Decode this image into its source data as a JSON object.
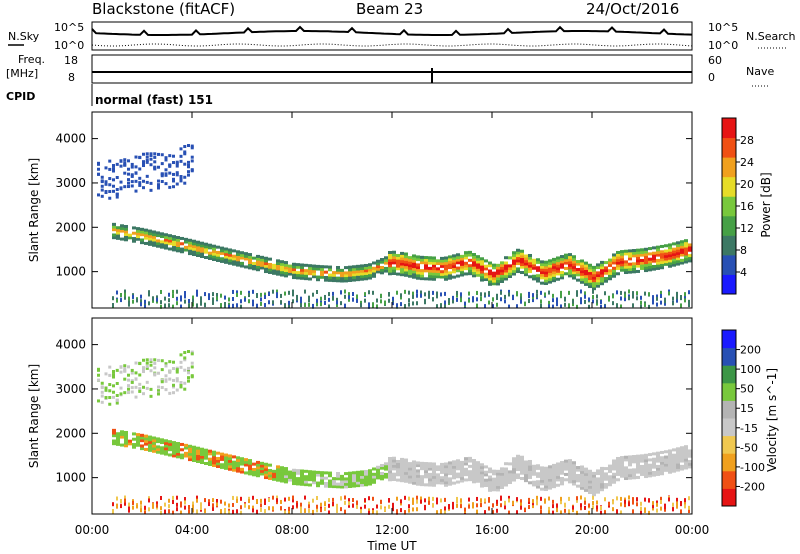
{
  "header": {
    "station": "Blackstone (fitACF)",
    "beam": "Beam 23",
    "date": "24/Oct/2016"
  },
  "top_panels": {
    "left_label_1": "N.Sky",
    "left_label_2a": "Freq.",
    "left_label_2b": "[MHz]",
    "left_label_3": "CPID",
    "right_label_1": "N.Search",
    "right_label_2": "Nave",
    "ticks_left_1": [
      "10^5",
      "10^0"
    ],
    "ticks_right_1": [
      "10^5",
      "10^0"
    ],
    "ticks_left_2": [
      "18",
      "8"
    ],
    "ticks_right_2": [
      "60",
      "0"
    ],
    "cpid_text": "normal (fast) 151"
  },
  "colors": {
    "power_scale": [
      "#1a1aff",
      "#2850b4",
      "#3c7864",
      "#46a046",
      "#78c83c",
      "#e6dc28",
      "#f0a01e",
      "#f05014",
      "#e61414"
    ],
    "velocity_scale": [
      "#e61414",
      "#f05014",
      "#f0a01e",
      "#f0c850",
      "#c8c8c8",
      "#b4b4b4",
      "#78c83c",
      "#3c9646",
      "#2850b4",
      "#1a1aff"
    ]
  },
  "chart_data": [
    {
      "type": "heatmap",
      "title": "",
      "xlabel": "Time UT",
      "ylabel": "Slant Range [km]",
      "x_range": [
        "00:00",
        "00:00"
      ],
      "x_ticks": [
        "00:00",
        "04:00",
        "08:00",
        "12:00",
        "16:00",
        "20:00",
        "00:00"
      ],
      "y_ticks": [
        1000,
        2000,
        3000,
        4000
      ],
      "ylim": [
        180,
        4600
      ],
      "colorbar": {
        "label": "Power [dB]",
        "ticks": [
          4,
          8,
          12,
          16,
          20,
          24,
          28
        ],
        "range": [
          0,
          30
        ]
      },
      "band_ridge": {
        "time_hours": [
          0.8,
          2,
          3,
          4,
          5,
          6,
          7,
          8,
          9,
          10,
          11,
          11.9,
          12.5,
          13,
          14,
          15,
          16,
          17,
          18,
          19,
          20,
          21,
          22,
          23,
          24
        ],
        "range_km": [
          1900,
          1780,
          1650,
          1520,
          1380,
          1250,
          1120,
          1000,
          950,
          920,
          980,
          1200,
          1150,
          1080,
          1050,
          1200,
          900,
          1250,
          950,
          1150,
          850,
          1200,
          1250,
          1350,
          1500
        ]
      }
    },
    {
      "type": "heatmap",
      "title": "",
      "xlabel": "Time UT",
      "ylabel": "Slant Range [km]",
      "x_ticks": [
        "00:00",
        "04:00",
        "08:00",
        "12:00",
        "16:00",
        "20:00",
        "00:00"
      ],
      "y_ticks": [
        1000,
        2000,
        3000,
        4000
      ],
      "ylim": [
        180,
        4600
      ],
      "colorbar": {
        "label": "Velocity [m s^-1]",
        "ticks": [
          -200,
          -100,
          -50,
          -15,
          15,
          50,
          100,
          200
        ]
      }
    }
  ]
}
